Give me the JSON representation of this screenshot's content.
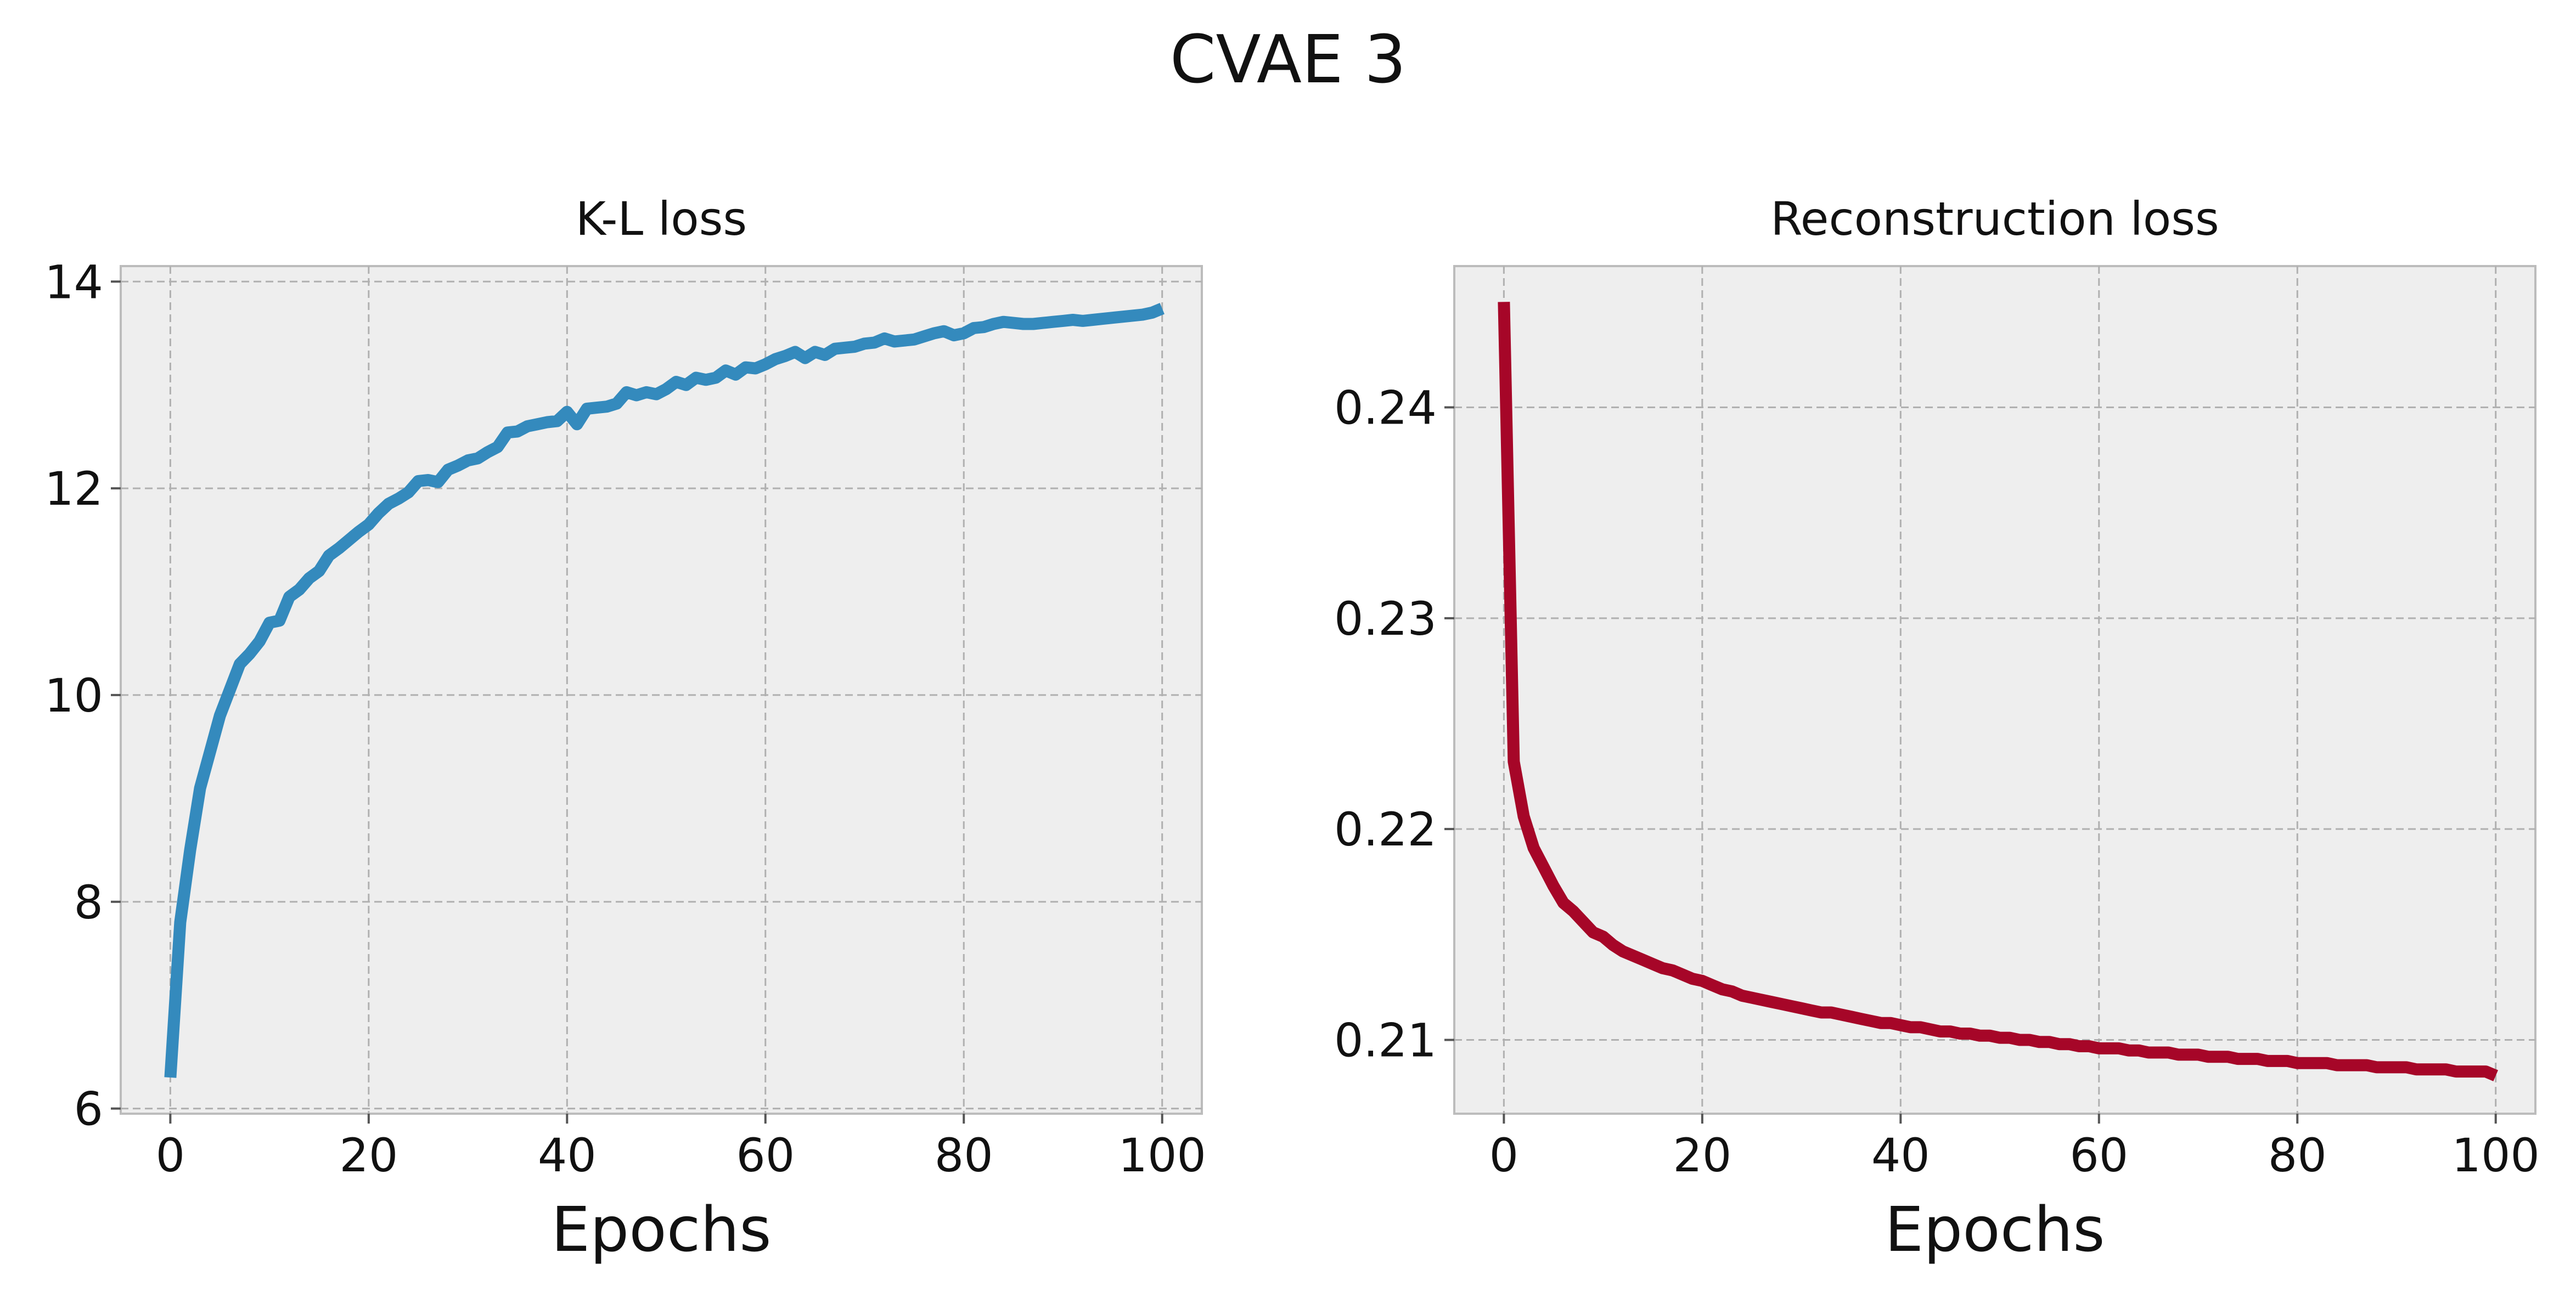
{
  "figure": {
    "suptitle": "CVAE 3"
  },
  "chart_data": [
    {
      "type": "line",
      "title": "K-L loss",
      "xlabel": "Epochs",
      "ylabel": "",
      "xlim": [
        -5,
        104
      ],
      "ylim": [
        5.95,
        14.15
      ],
      "xticks": [
        0,
        20,
        40,
        60,
        80,
        100
      ],
      "yticks": [
        6,
        8,
        10,
        12,
        14
      ],
      "ytick_decimals": 0,
      "grid": true,
      "color": "#348ABD",
      "series": [
        {
          "x": [
            0,
            1,
            2,
            3,
            4,
            5,
            6,
            7,
            8,
            9,
            10,
            11,
            12,
            13,
            14,
            15,
            16,
            17,
            18,
            19,
            20,
            21,
            22,
            23,
            24,
            25,
            26,
            27,
            28,
            29,
            30,
            31,
            32,
            33,
            34,
            35,
            36,
            37,
            38,
            39,
            40,
            41,
            42,
            43,
            44,
            45,
            46,
            47,
            48,
            49,
            50,
            51,
            52,
            53,
            54,
            55,
            56,
            57,
            58,
            59,
            60,
            61,
            62,
            63,
            64,
            65,
            66,
            67,
            68,
            69,
            70,
            71,
            72,
            73,
            74,
            75,
            76,
            77,
            78,
            79,
            80,
            81,
            82,
            83,
            84,
            85,
            86,
            87,
            88,
            89,
            90,
            91,
            92,
            93,
            94,
            95,
            96,
            97,
            98,
            99,
            100
          ],
          "values": [
            6.3,
            7.8,
            8.5,
            9.1,
            9.45,
            9.8,
            10.05,
            10.3,
            10.4,
            10.52,
            10.7,
            10.72,
            10.95,
            11.02,
            11.13,
            11.2,
            11.35,
            11.42,
            11.5,
            11.58,
            11.65,
            11.76,
            11.85,
            11.9,
            11.96,
            12.07,
            12.08,
            12.06,
            12.18,
            12.22,
            12.27,
            12.29,
            12.35,
            12.4,
            12.54,
            12.55,
            12.6,
            12.62,
            12.64,
            12.65,
            12.74,
            12.62,
            12.77,
            12.78,
            12.79,
            12.82,
            12.93,
            12.9,
            12.93,
            12.91,
            12.96,
            13.03,
            13.0,
            13.07,
            13.05,
            13.07,
            13.14,
            13.1,
            13.17,
            13.16,
            13.2,
            13.25,
            13.28,
            13.32,
            13.26,
            13.32,
            13.29,
            13.35,
            13.36,
            13.37,
            13.4,
            13.41,
            13.45,
            13.42,
            13.43,
            13.44,
            13.47,
            13.5,
            13.52,
            13.48,
            13.5,
            13.55,
            13.56,
            13.59,
            13.61,
            13.6,
            13.59,
            13.59,
            13.6,
            13.61,
            13.62,
            13.63,
            13.62,
            13.63,
            13.64,
            13.65,
            13.66,
            13.67,
            13.68,
            13.7,
            13.74
          ]
        }
      ]
    },
    {
      "type": "line",
      "title": "Reconstruction loss",
      "xlabel": "Epochs",
      "ylabel": "",
      "xlim": [
        -5,
        104
      ],
      "ylim": [
        0.2065,
        0.2467
      ],
      "xticks": [
        0,
        20,
        40,
        60,
        80,
        100
      ],
      "yticks": [
        0.21,
        0.22,
        0.23,
        0.24
      ],
      "ytick_decimals": 2,
      "grid": true,
      "color": "#A60628",
      "series": [
        {
          "x": [
            0,
            1,
            2,
            3,
            4,
            5,
            6,
            7,
            8,
            9,
            10,
            11,
            12,
            13,
            14,
            15,
            16,
            17,
            18,
            19,
            20,
            21,
            22,
            23,
            24,
            25,
            26,
            27,
            28,
            29,
            30,
            31,
            32,
            33,
            34,
            35,
            36,
            37,
            38,
            39,
            40,
            41,
            42,
            43,
            44,
            45,
            46,
            47,
            48,
            49,
            50,
            51,
            52,
            53,
            54,
            55,
            56,
            57,
            58,
            59,
            60,
            61,
            62,
            63,
            64,
            65,
            66,
            67,
            68,
            69,
            70,
            71,
            72,
            73,
            74,
            75,
            76,
            77,
            78,
            79,
            80,
            81,
            82,
            83,
            84,
            85,
            86,
            87,
            88,
            89,
            90,
            91,
            92,
            93,
            94,
            95,
            96,
            97,
            98,
            99,
            100
          ],
          "values": [
            0.245,
            0.2232,
            0.2206,
            0.2191,
            0.2182,
            0.2173,
            0.2165,
            0.2161,
            0.2156,
            0.2151,
            0.2149,
            0.2145,
            0.2142,
            0.214,
            0.2138,
            0.2136,
            0.2134,
            0.2133,
            0.2131,
            0.2129,
            0.2128,
            0.2126,
            0.2124,
            0.2123,
            0.2121,
            0.212,
            0.2119,
            0.2118,
            0.2117,
            0.2116,
            0.2115,
            0.2114,
            0.2113,
            0.2113,
            0.2112,
            0.2111,
            0.211,
            0.2109,
            0.2108,
            0.2108,
            0.2107,
            0.2106,
            0.2106,
            0.2105,
            0.2104,
            0.2104,
            0.2103,
            0.2103,
            0.2102,
            0.2102,
            0.2101,
            0.2101,
            0.21,
            0.21,
            0.2099,
            0.2099,
            0.2098,
            0.2098,
            0.2097,
            0.2097,
            0.2096,
            0.2096,
            0.2096,
            0.2095,
            0.2095,
            0.2094,
            0.2094,
            0.2094,
            0.2093,
            0.2093,
            0.2093,
            0.2092,
            0.2092,
            0.2092,
            0.2091,
            0.2091,
            0.2091,
            0.209,
            0.209,
            0.209,
            0.2089,
            0.2089,
            0.2089,
            0.2089,
            0.2088,
            0.2088,
            0.2088,
            0.2088,
            0.2087,
            0.2087,
            0.2087,
            0.2087,
            0.2086,
            0.2086,
            0.2086,
            0.2086,
            0.2085,
            0.2085,
            0.2085,
            0.2085,
            0.2083
          ]
        }
      ]
    }
  ]
}
